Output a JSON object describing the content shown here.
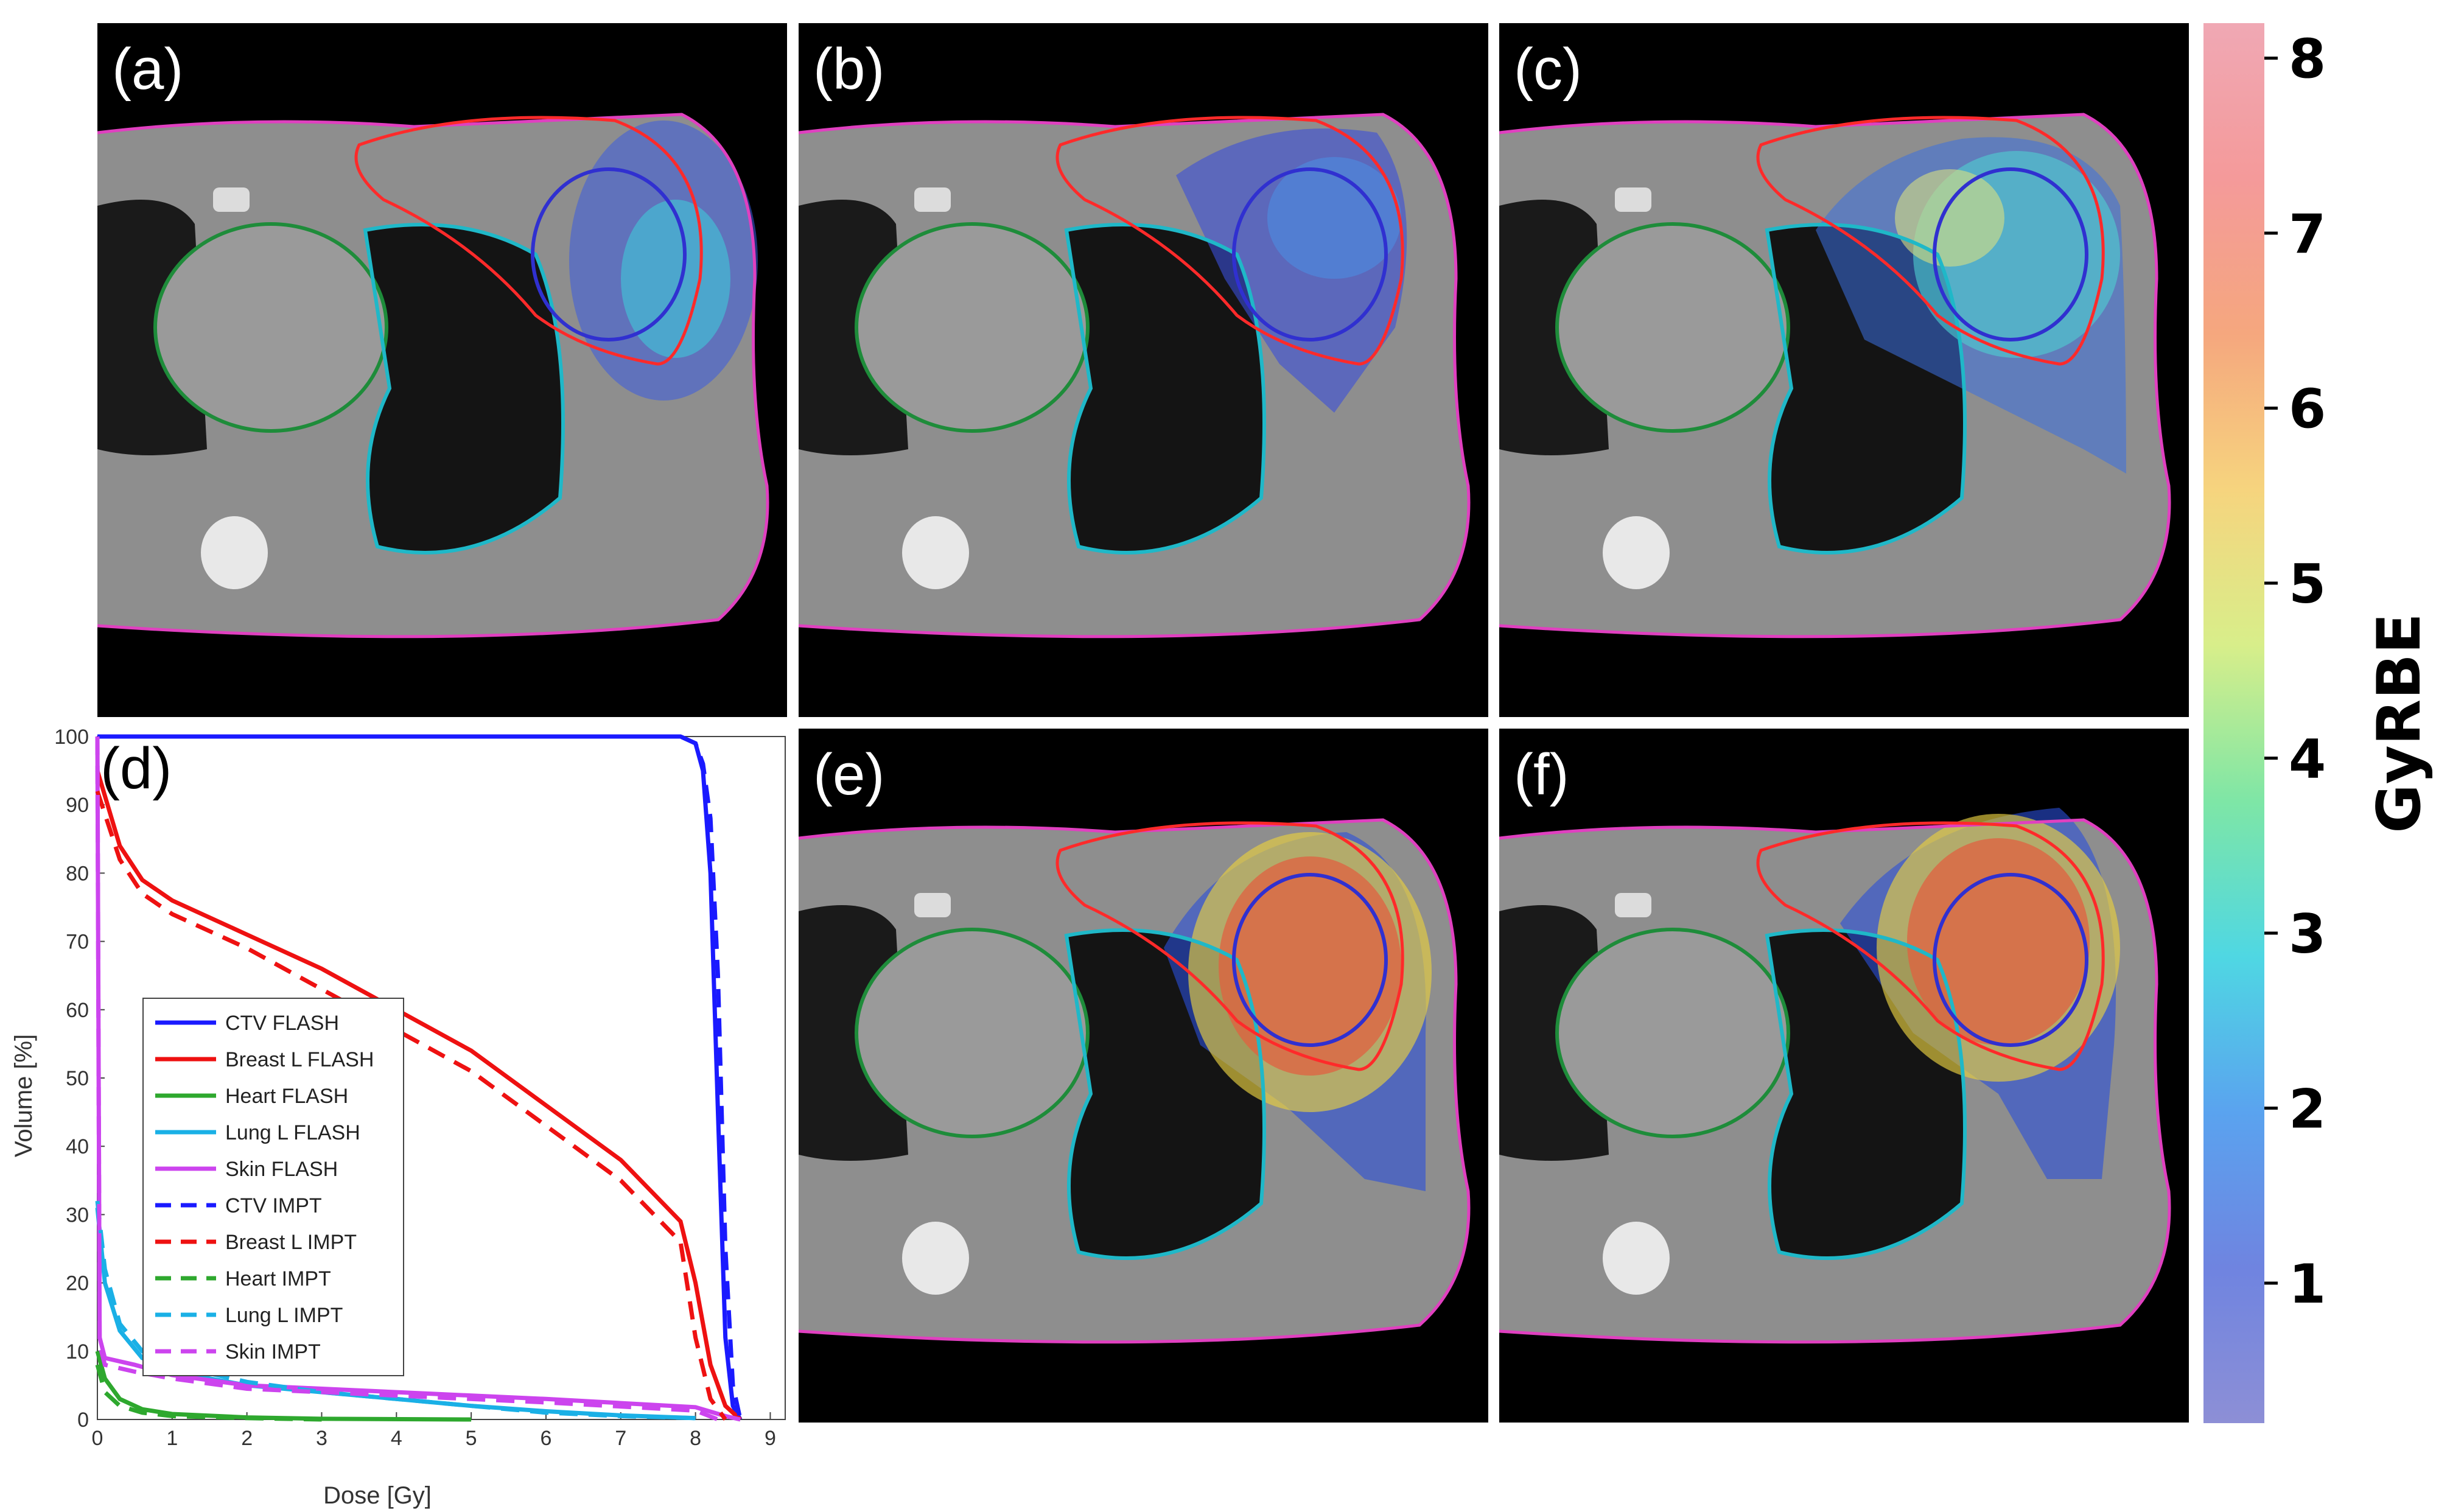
{
  "panels": {
    "a": {
      "label": "(a)"
    },
    "b": {
      "label": "(b)"
    },
    "c": {
      "label": "(c)"
    },
    "e": {
      "label": "(e)"
    },
    "f": {
      "label": "(f)"
    }
  },
  "colorbar": {
    "label": "GyRBE",
    "ticks": [
      "1",
      "2",
      "3",
      "4",
      "5",
      "6",
      "7",
      "8"
    ],
    "range": [
      0.2,
      8.2
    ],
    "colormap": [
      "#8d8fd6",
      "#6f84e0",
      "#5aa3ef",
      "#4fd7e3",
      "#7ee6a6",
      "#d8ee8a",
      "#f6d47e",
      "#f5a77e",
      "#f49a9a",
      "#f0a8b4"
    ]
  },
  "chart_data": {
    "type": "line",
    "panel_label": "(d)",
    "xlabel": "Dose [Gy]",
    "ylabel": "Volume [%]",
    "xlim": [
      0,
      9.2
    ],
    "ylim": [
      0,
      100
    ],
    "xticks": [
      "0",
      "1",
      "2",
      "3",
      "4",
      "5",
      "6",
      "7",
      "8",
      "9"
    ],
    "yticks": [
      "0",
      "10",
      "20",
      "30",
      "40",
      "50",
      "60",
      "70",
      "80",
      "90",
      "100"
    ],
    "legend_position": "center",
    "series": [
      {
        "name": "CTV FLASH",
        "color": "#1a1aff",
        "dash": "solid",
        "x": [
          0,
          7.8,
          8.0,
          8.1,
          8.2,
          8.3,
          8.4,
          8.5,
          8.6
        ],
        "y": [
          100,
          100,
          99,
          95,
          80,
          45,
          12,
          2,
          0
        ]
      },
      {
        "name": "Breast L FLASH",
        "color": "#ee1111",
        "dash": "solid",
        "x": [
          0,
          0.3,
          0.6,
          1,
          2,
          3,
          4,
          5,
          6,
          7,
          7.8,
          8.0,
          8.2,
          8.4,
          8.6
        ],
        "y": [
          95,
          84,
          79,
          76,
          71,
          66,
          60,
          54,
          46,
          38,
          29,
          20,
          8,
          2,
          0
        ]
      },
      {
        "name": "Heart  FLASH",
        "color": "#2ea82e",
        "dash": "solid",
        "x": [
          0,
          0.1,
          0.3,
          0.6,
          1,
          2,
          3,
          5
        ],
        "y": [
          10,
          6,
          3,
          1.5,
          0.8,
          0.3,
          0.1,
          0
        ]
      },
      {
        "name": "Lung L FLASH",
        "color": "#1ab0e6",
        "dash": "solid",
        "x": [
          0,
          0.1,
          0.3,
          0.6,
          1,
          2,
          3,
          4,
          5,
          6,
          7,
          8
        ],
        "y": [
          31,
          20,
          13,
          9,
          7,
          5,
          4,
          3,
          2,
          1.2,
          0.6,
          0.2
        ]
      },
      {
        "name": "Skin   FLASH",
        "color": "#cc44ee",
        "dash": "solid",
        "x": [
          0,
          0.03,
          0.1,
          0.5,
          1,
          2,
          4,
          6,
          8,
          8.4,
          8.6
        ],
        "y": [
          100,
          12,
          9,
          8,
          6.5,
          5,
          4,
          3,
          1.8,
          0.5,
          0
        ]
      },
      {
        "name": "CTV IMPT",
        "color": "#1a1aff",
        "dash": "dashed",
        "x": [
          0,
          7.8,
          8.0,
          8.1,
          8.2,
          8.3,
          8.4,
          8.5,
          8.6
        ],
        "y": [
          100,
          100,
          99,
          96,
          88,
          65,
          25,
          5,
          0
        ]
      },
      {
        "name": "Breast L IMPT",
        "color": "#ee1111",
        "dash": "dashed",
        "x": [
          0,
          0.3,
          0.6,
          1,
          2,
          3,
          4,
          5,
          6,
          7,
          7.8,
          8.0,
          8.2,
          8.4
        ],
        "y": [
          92,
          82,
          77,
          74,
          69,
          63,
          57,
          51,
          43,
          35,
          26,
          12,
          3,
          0
        ]
      },
      {
        "name": "Heart  IMPT",
        "color": "#2ea82e",
        "dash": "dashed",
        "x": [
          0,
          0.1,
          0.3,
          0.6,
          1,
          2,
          3
        ],
        "y": [
          8,
          4,
          2,
          1,
          0.5,
          0.2,
          0
        ]
      },
      {
        "name": "Lung L IMPT",
        "color": "#1ab0e6",
        "dash": "dashed",
        "x": [
          0,
          0.1,
          0.3,
          0.6,
          1,
          2,
          3,
          4,
          5,
          6,
          7,
          8
        ],
        "y": [
          32,
          22,
          14,
          10,
          8,
          5.5,
          4,
          3,
          2,
          1,
          0.5,
          0.2
        ]
      },
      {
        "name": "Skin  IMPT",
        "color": "#cc44ee",
        "dash": "dashed",
        "x": [
          0,
          0.03,
          0.1,
          0.5,
          1,
          2,
          4,
          6,
          8,
          8.3
        ],
        "y": [
          100,
          11,
          8,
          7,
          6,
          4.5,
          3.5,
          2.5,
          1.3,
          0
        ]
      }
    ]
  }
}
